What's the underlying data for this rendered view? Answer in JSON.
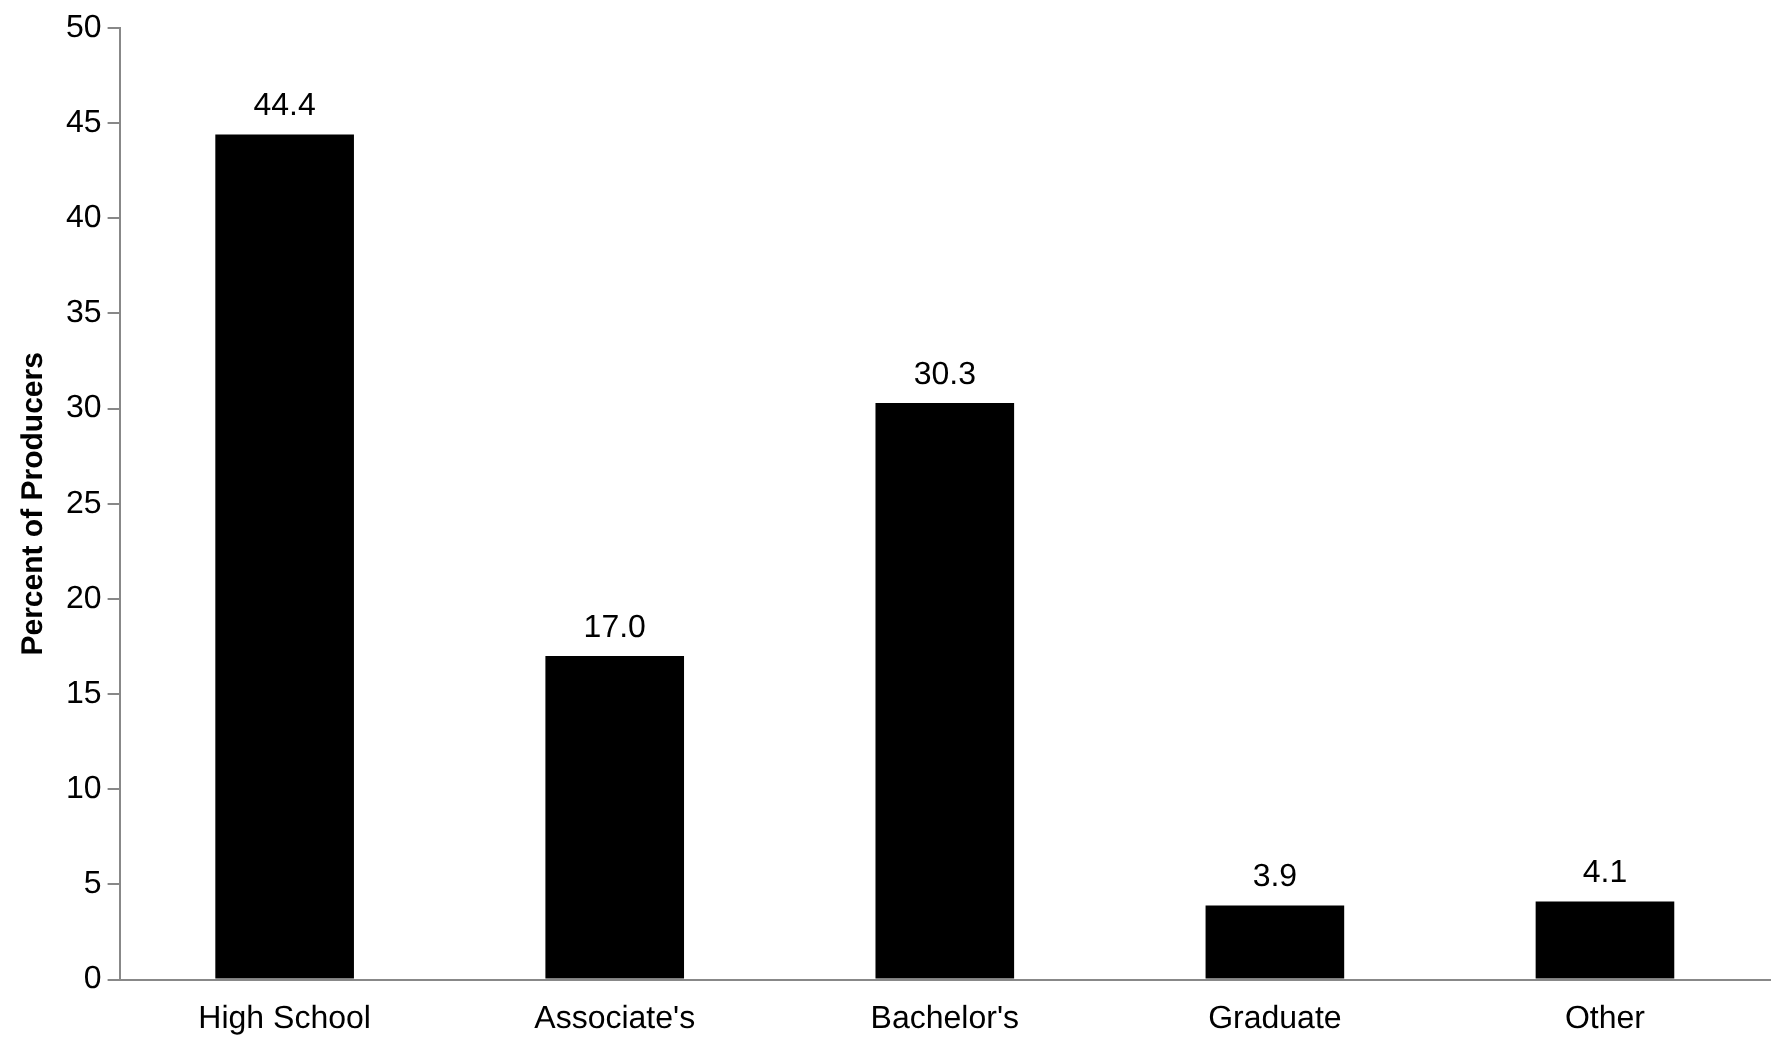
{
  "chart_data": {
    "type": "bar",
    "ylabel": "Percent of Producers",
    "categories": [
      "High School",
      "Associate's",
      "Bachelor's",
      "Graduate",
      "Other"
    ],
    "values": [
      44.4,
      17.0,
      30.3,
      3.9,
      4.1
    ],
    "value_labels": [
      "44.4",
      "17.0",
      "30.3",
      "3.9",
      "4.1"
    ],
    "color": "#000000",
    "ylim": [
      0,
      50
    ],
    "yticks": [
      0,
      5,
      10,
      15,
      20,
      25,
      30,
      35,
      40,
      45,
      50
    ],
    "grid": false,
    "legend": false
  }
}
